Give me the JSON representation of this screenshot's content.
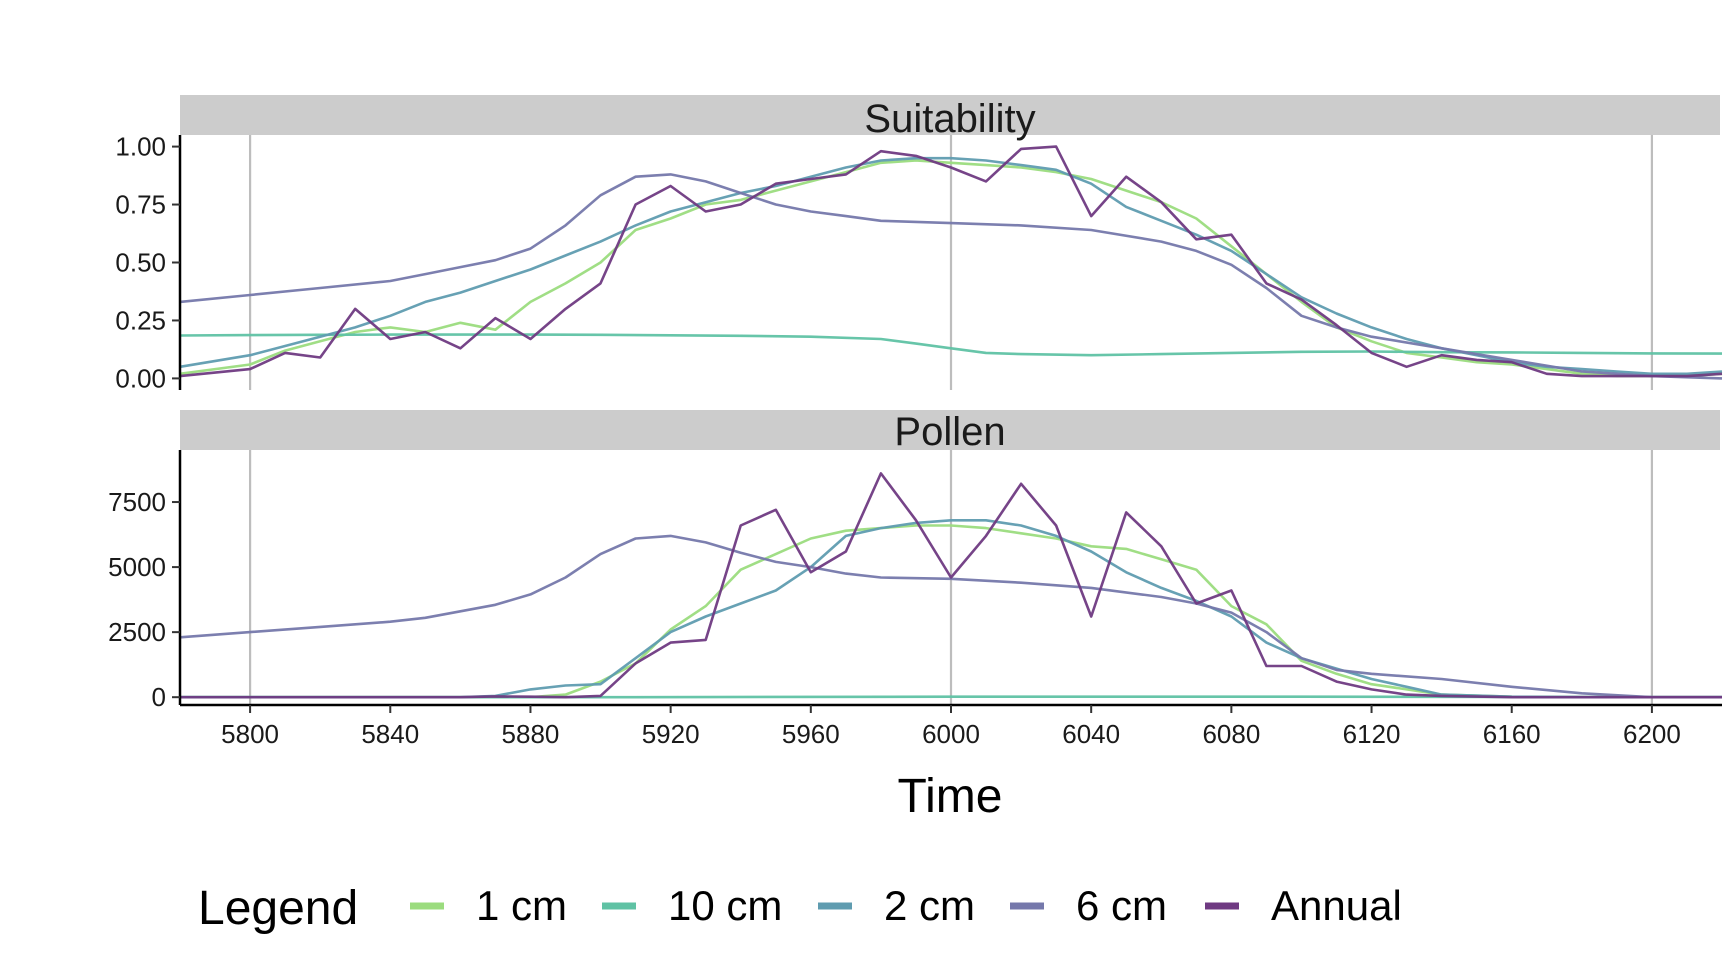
{
  "chart_data": {
    "type": "line",
    "xlabel": "Time",
    "xlim": [
      5780,
      6220
    ],
    "x_ticks": [
      5800,
      5840,
      5880,
      5920,
      5960,
      6000,
      6040,
      6080,
      6120,
      6160,
      6200
    ],
    "grid": "vertical lines at 5800, 6000, 6200",
    "legend": {
      "title": "Legend",
      "placement": "bottom",
      "entries": [
        "1 cm",
        "10 cm",
        "2 cm",
        "6 cm",
        "Annual"
      ]
    },
    "colors": {
      "1 cm": "#9bdc7e",
      "10 cm": "#5fc2a4",
      "2 cm": "#5f9cb0",
      "6 cm": "#7578ab",
      "Annual": "#6f3a82"
    },
    "panels": [
      {
        "title": "Suitability",
        "ylim": [
          -0.05,
          1.05
        ],
        "y_ticks": [
          "0.00",
          "0.25",
          "0.50",
          "0.75",
          "1.00"
        ],
        "y_tick_values": [
          0,
          0.25,
          0.5,
          0.75,
          1.0
        ],
        "series": [
          {
            "name": "1 cm",
            "x": [
              5780,
              5800,
              5810,
              5820,
              5830,
              5840,
              5850,
              5860,
              5870,
              5880,
              5890,
              5900,
              5910,
              5920,
              5930,
              5940,
              5950,
              5960,
              5970,
              5980,
              5990,
              6000,
              6010,
              6020,
              6030,
              6040,
              6050,
              6060,
              6070,
              6080,
              6090,
              6100,
              6110,
              6120,
              6130,
              6140,
              6150,
              6160,
              6170,
              6180,
              6190,
              6200,
              6210,
              6220
            ],
            "y": [
              0.02,
              0.06,
              0.12,
              0.16,
              0.2,
              0.22,
              0.2,
              0.24,
              0.21,
              0.33,
              0.41,
              0.5,
              0.64,
              0.69,
              0.75,
              0.77,
              0.81,
              0.85,
              0.89,
              0.93,
              0.94,
              0.93,
              0.92,
              0.91,
              0.89,
              0.86,
              0.81,
              0.76,
              0.69,
              0.57,
              0.45,
              0.33,
              0.22,
              0.16,
              0.11,
              0.09,
              0.07,
              0.06,
              0.04,
              0.02,
              0.01,
              0.01,
              0.01,
              0.02
            ]
          },
          {
            "name": "10 cm",
            "x": [
              5780,
              5800,
              5820,
              5840,
              5860,
              5880,
              5900,
              5920,
              5940,
              5960,
              5980,
              5990,
              6000,
              6010,
              6020,
              6040,
              6060,
              6080,
              6100,
              6120,
              6140,
              6160,
              6180,
              6200,
              6220
            ],
            "y": [
              0.185,
              0.187,
              0.188,
              0.189,
              0.189,
              0.189,
              0.188,
              0.186,
              0.184,
              0.18,
              0.17,
              0.15,
              0.13,
              0.11,
              0.105,
              0.1,
              0.105,
              0.11,
              0.115,
              0.116,
              0.113,
              0.112,
              0.11,
              0.108,
              0.107
            ]
          },
          {
            "name": "2 cm",
            "x": [
              5780,
              5800,
              5810,
              5820,
              5830,
              5840,
              5850,
              5860,
              5870,
              5880,
              5890,
              5900,
              5910,
              5920,
              5930,
              5940,
              5950,
              5960,
              5970,
              5980,
              5990,
              6000,
              6010,
              6020,
              6030,
              6040,
              6050,
              6060,
              6070,
              6080,
              6090,
              6100,
              6110,
              6120,
              6130,
              6140,
              6150,
              6160,
              6170,
              6180,
              6190,
              6200,
              6210,
              6220
            ],
            "y": [
              0.05,
              0.1,
              0.14,
              0.18,
              0.22,
              0.27,
              0.33,
              0.37,
              0.42,
              0.47,
              0.53,
              0.59,
              0.66,
              0.72,
              0.76,
              0.8,
              0.83,
              0.87,
              0.91,
              0.94,
              0.95,
              0.95,
              0.94,
              0.92,
              0.9,
              0.84,
              0.74,
              0.68,
              0.62,
              0.55,
              0.45,
              0.35,
              0.28,
              0.22,
              0.17,
              0.13,
              0.1,
              0.07,
              0.05,
              0.04,
              0.03,
              0.02,
              0.02,
              0.03
            ]
          },
          {
            "name": "6 cm",
            "x": [
              5780,
              5800,
              5820,
              5840,
              5850,
              5860,
              5870,
              5880,
              5890,
              5900,
              5910,
              5920,
              5930,
              5940,
              5950,
              5960,
              5970,
              5980,
              6000,
              6020,
              6040,
              6060,
              6070,
              6080,
              6090,
              6100,
              6110,
              6120,
              6140,
              6160,
              6180,
              6200,
              6220
            ],
            "y": [
              0.33,
              0.36,
              0.39,
              0.42,
              0.45,
              0.48,
              0.51,
              0.56,
              0.66,
              0.79,
              0.87,
              0.88,
              0.85,
              0.8,
              0.75,
              0.72,
              0.7,
              0.68,
              0.67,
              0.66,
              0.64,
              0.59,
              0.55,
              0.49,
              0.39,
              0.27,
              0.22,
              0.18,
              0.13,
              0.08,
              0.03,
              0.01,
              0.0
            ]
          },
          {
            "name": "Annual",
            "x": [
              5780,
              5800,
              5810,
              5820,
              5830,
              5840,
              5850,
              5860,
              5870,
              5880,
              5890,
              5900,
              5910,
              5920,
              5930,
              5940,
              5950,
              5960,
              5970,
              5980,
              5990,
              6000,
              6010,
              6020,
              6030,
              6040,
              6050,
              6060,
              6070,
              6080,
              6090,
              6100,
              6110,
              6120,
              6130,
              6140,
              6150,
              6160,
              6170,
              6180,
              6190,
              6200,
              6210,
              6220
            ],
            "y": [
              0.01,
              0.04,
              0.11,
              0.09,
              0.3,
              0.17,
              0.2,
              0.13,
              0.26,
              0.17,
              0.3,
              0.41,
              0.75,
              0.83,
              0.72,
              0.75,
              0.84,
              0.86,
              0.88,
              0.98,
              0.96,
              0.91,
              0.85,
              0.99,
              1.0,
              0.7,
              0.87,
              0.76,
              0.6,
              0.62,
              0.41,
              0.34,
              0.23,
              0.11,
              0.05,
              0.1,
              0.08,
              0.07,
              0.02,
              0.01,
              0.01,
              0.01,
              0.01,
              0.02
            ]
          }
        ]
      },
      {
        "title": "Pollen",
        "ylim": [
          -300,
          9500
        ],
        "y_ticks": [
          "0",
          "2500",
          "5000",
          "7500"
        ],
        "y_tick_values": [
          0,
          2500,
          5000,
          7500
        ],
        "series": [
          {
            "name": "1 cm",
            "x": [
              5780,
              5860,
              5880,
              5890,
              5900,
              5910,
              5920,
              5930,
              5940,
              5950,
              5960,
              5970,
              5980,
              5990,
              6000,
              6010,
              6020,
              6030,
              6040,
              6050,
              6060,
              6070,
              6080,
              6090,
              6100,
              6110,
              6120,
              6130,
              6140,
              6160,
              6180,
              6220
            ],
            "y": [
              0,
              0,
              0,
              100,
              600,
              1300,
              2600,
              3500,
              4900,
              5500,
              6100,
              6400,
              6500,
              6600,
              6600,
              6500,
              6300,
              6100,
              5800,
              5700,
              5300,
              4900,
              3500,
              2800,
              1400,
              900,
              500,
              300,
              100,
              20,
              0,
              0
            ]
          },
          {
            "name": "10 cm",
            "x": [
              5780,
              5900,
              6000,
              6100,
              6220
            ],
            "y": [
              0,
              0,
              20,
              20,
              0
            ]
          },
          {
            "name": "2 cm",
            "x": [
              5780,
              5860,
              5870,
              5880,
              5890,
              5900,
              5910,
              5920,
              5930,
              5940,
              5950,
              5960,
              5970,
              5980,
              5990,
              6000,
              6010,
              6020,
              6030,
              6040,
              6050,
              6060,
              6070,
              6080,
              6090,
              6100,
              6110,
              6120,
              6130,
              6140,
              6160,
              6180,
              6220
            ],
            "y": [
              0,
              0,
              50,
              300,
              450,
              500,
              1500,
              2500,
              3100,
              3600,
              4100,
              5000,
              6200,
              6500,
              6700,
              6800,
              6800,
              6600,
              6200,
              5600,
              4800,
              4200,
              3700,
              3100,
              2100,
              1500,
              1100,
              700,
              400,
              100,
              20,
              0,
              0
            ]
          },
          {
            "name": "6 cm",
            "x": [
              5780,
              5800,
              5820,
              5840,
              5850,
              5860,
              5870,
              5880,
              5890,
              5900,
              5910,
              5920,
              5930,
              5940,
              5950,
              5960,
              5970,
              5980,
              6000,
              6020,
              6040,
              6060,
              6070,
              6080,
              6090,
              6100,
              6110,
              6120,
              6140,
              6160,
              6180,
              6200,
              6220
            ],
            "y": [
              2300,
              2500,
              2700,
              2900,
              3050,
              3300,
              3550,
              3950,
              4600,
              5500,
              6100,
              6200,
              5950,
              5550,
              5200,
              5000,
              4750,
              4600,
              4550,
              4400,
              4200,
              3850,
              3600,
              3250,
              2500,
              1500,
              1050,
              900,
              700,
              400,
              150,
              0,
              0
            ]
          },
          {
            "name": "Annual",
            "x": [
              5780,
              5860,
              5870,
              5880,
              5890,
              5900,
              5910,
              5920,
              5930,
              5940,
              5950,
              5960,
              5970,
              5980,
              5990,
              6000,
              6010,
              6020,
              6030,
              6040,
              6050,
              6060,
              6070,
              6080,
              6090,
              6100,
              6110,
              6120,
              6130,
              6140,
              6160,
              6180,
              6220
            ],
            "y": [
              0,
              0,
              30,
              20,
              0,
              50,
              1300,
              2100,
              2200,
              6600,
              7200,
              4800,
              5600,
              8600,
              6800,
              4600,
              6200,
              8200,
              6600,
              3100,
              7100,
              5800,
              3600,
              4100,
              1200,
              1200,
              600,
              300,
              100,
              50,
              0,
              0,
              0
            ]
          }
        ]
      }
    ]
  }
}
